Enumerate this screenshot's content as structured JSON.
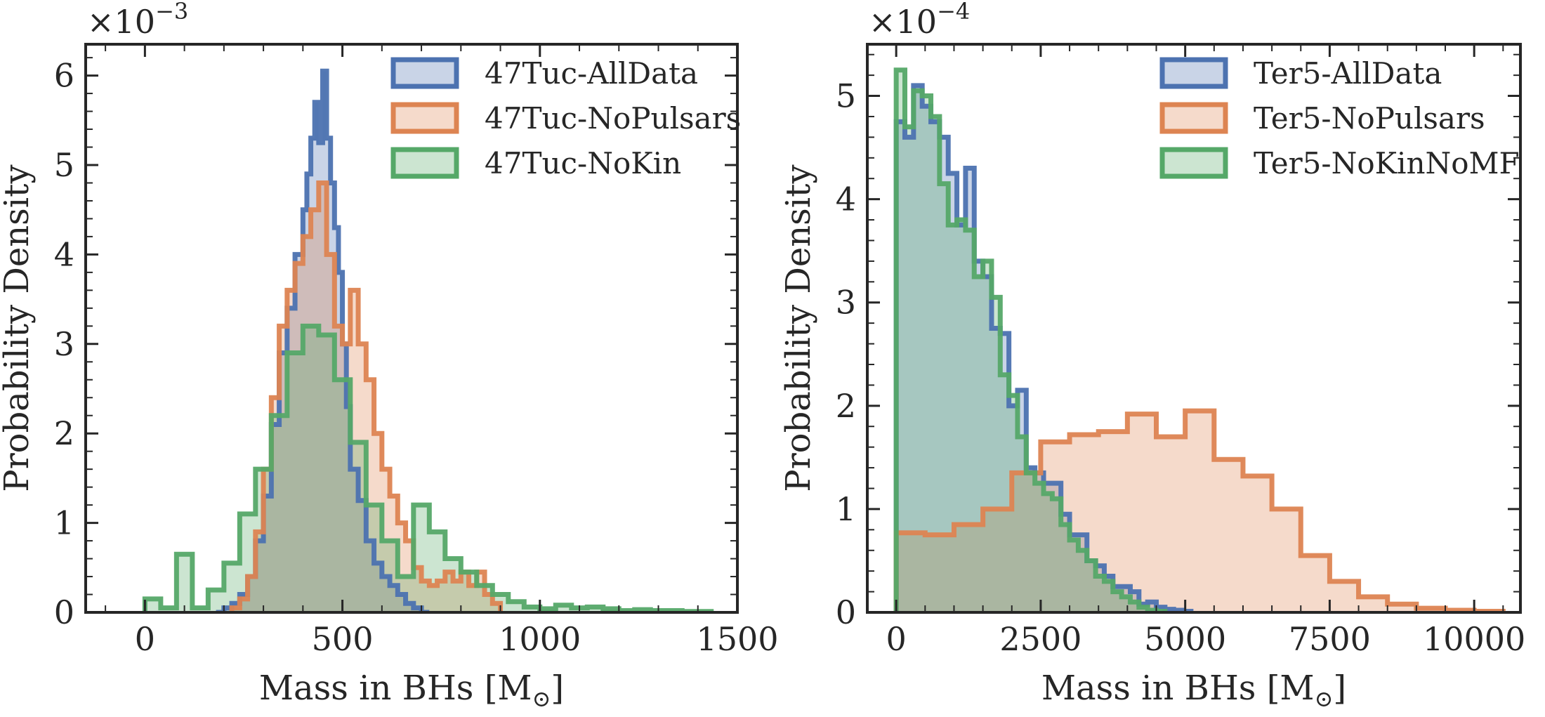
{
  "colors": {
    "blue": "#4C72B0",
    "orange": "#DD8452",
    "green": "#55A868",
    "axis": "#262626"
  },
  "chart_data": [
    {
      "type": "histogram",
      "scale_prefix": "×10",
      "scale_exponent": "−3",
      "xlabel": "Mass in BHs [M",
      "xlabel_sub": "⊙",
      "xlabel_end": "]",
      "ylabel": "Probability Density",
      "xlim": [
        -150,
        1500
      ],
      "ylim": [
        0,
        6.35
      ],
      "xticks": [
        0,
        500,
        1000,
        1500
      ],
      "xtick_labels": [
        "0",
        "500",
        "1000",
        "1500"
      ],
      "xminor_step": 100,
      "yticks": [
        0,
        1,
        2,
        3,
        4,
        5,
        6
      ],
      "ytick_labels": [
        "0",
        "1",
        "2",
        "3",
        "4",
        "5",
        "6"
      ],
      "yminor_step": 0.2,
      "legend_position": "top-right",
      "series": [
        {
          "name": "47Tuc-AllData",
          "color": "blue",
          "edges": [
            180,
            200,
            220,
            240,
            260,
            280,
            300,
            320,
            340,
            360,
            380,
            400,
            410,
            420,
            430,
            440,
            450,
            460,
            470,
            480,
            490,
            500,
            510,
            520,
            540,
            560,
            580,
            600,
            620,
            640,
            660,
            680,
            700,
            720
          ],
          "values": [
            0,
            0.05,
            0.1,
            0.2,
            0.4,
            0.8,
            1.3,
            2.1,
            2.9,
            3.4,
            4.0,
            4.5,
            4.9,
            5.3,
            5.7,
            5.25,
            6.05,
            5.3,
            4.8,
            4.3,
            3.8,
            3.0,
            2.3,
            1.6,
            1.25,
            0.8,
            0.55,
            0.4,
            0.3,
            0.2,
            0.1,
            0.05,
            0
          ]
        },
        {
          "name": "47Tuc-NoPulsars",
          "color": "orange",
          "edges": [
            220,
            240,
            260,
            280,
            300,
            320,
            340,
            360,
            380,
            400,
            420,
            440,
            460,
            480,
            500,
            520,
            540,
            560,
            580,
            600,
            620,
            640,
            660,
            680,
            700,
            720,
            740,
            760,
            780,
            800,
            820,
            840,
            860,
            880,
            900
          ],
          "values": [
            0.05,
            0.15,
            0.4,
            0.9,
            1.6,
            2.4,
            3.2,
            3.6,
            3.9,
            4.2,
            4.5,
            4.8,
            4.0,
            3.2,
            3.0,
            3.6,
            3.0,
            2.6,
            2.0,
            1.6,
            1.3,
            1.0,
            0.8,
            0.5,
            0.35,
            0.3,
            0.35,
            0.45,
            0.35,
            0.45,
            0.3,
            0.45,
            0.2,
            0.1
          ]
        },
        {
          "name": "47Tuc-NoKin",
          "color": "green",
          "edges": [
            0,
            40,
            80,
            120,
            160,
            200,
            240,
            280,
            320,
            360,
            400,
            440,
            480,
            520,
            560,
            600,
            640,
            680,
            720,
            760,
            800,
            840,
            880,
            920,
            960,
            1000,
            1040,
            1080,
            1120,
            1160,
            1200,
            1240,
            1280,
            1320,
            1360,
            1400,
            1440
          ],
          "values": [
            0.15,
            0.05,
            0.65,
            0.05,
            0.25,
            0.55,
            1.1,
            1.6,
            2.2,
            2.9,
            3.2,
            3.1,
            2.6,
            1.9,
            1.2,
            0.8,
            0.4,
            1.2,
            0.9,
            0.6,
            0.45,
            0.3,
            0.2,
            0.12,
            0.06,
            0.04,
            0.08,
            0.05,
            0.06,
            0.04,
            0.02,
            0.03,
            0.02,
            0.02,
            0.01,
            0.01,
            0.01
          ]
        }
      ]
    },
    {
      "type": "histogram",
      "scale_prefix": "×10",
      "scale_exponent": "−4",
      "xlabel": "Mass in BHs [M",
      "xlabel_sub": "⊙",
      "xlabel_end": "]",
      "ylabel": "Probability Density",
      "xlim": [
        -500,
        10800
      ],
      "ylim": [
        0,
        5.5
      ],
      "xticks": [
        0,
        2500,
        5000,
        7500,
        10000
      ],
      "xtick_labels": [
        "0",
        "2500",
        "5000",
        "7500",
        "10000"
      ],
      "xminor_step": 500,
      "yticks": [
        0,
        1,
        2,
        3,
        4,
        5
      ],
      "ytick_labels": [
        "0",
        "1",
        "2",
        "3",
        "4",
        "5"
      ],
      "yminor_step": 0.2,
      "legend_position": "top-right",
      "series": [
        {
          "name": "Ter5-AllData",
          "color": "blue",
          "edges": [
            0,
            150,
            300,
            450,
            600,
            750,
            900,
            1050,
            1200,
            1350,
            1500,
            1650,
            1800,
            1950,
            2100,
            2250,
            2400,
            2550,
            2700,
            2850,
            3000,
            3150,
            3300,
            3450,
            3600,
            3750,
            3900,
            4050,
            4200,
            4350,
            4500,
            4650,
            4800,
            4950,
            5100
          ],
          "values": [
            4.75,
            4.6,
            5.1,
            4.9,
            4.75,
            4.6,
            4.25,
            3.75,
            4.3,
            3.4,
            3.25,
            2.75,
            2.7,
            2.0,
            2.15,
            1.4,
            1.35,
            1.25,
            1.25,
            0.95,
            0.75,
            0.75,
            0.5,
            0.45,
            0.35,
            0.25,
            0.25,
            0.2,
            0.08,
            0.1,
            0.05,
            0.03,
            0.02,
            0.01
          ]
        },
        {
          "name": "Ter5-NoPulsars",
          "color": "orange",
          "edges": [
            0,
            500,
            1000,
            1500,
            2000,
            2500,
            3000,
            3500,
            4000,
            4500,
            5000,
            5500,
            6000,
            6500,
            7000,
            7500,
            8000,
            8500,
            9000,
            9500,
            10000,
            10500
          ],
          "values": [
            0.77,
            0.75,
            0.85,
            1.0,
            1.35,
            1.65,
            1.72,
            1.75,
            1.92,
            1.7,
            1.95,
            1.48,
            1.32,
            1.0,
            0.55,
            0.3,
            0.15,
            0.08,
            0.04,
            0.02,
            0.01
          ]
        },
        {
          "name": "Ter5-NoKinNoMF",
          "color": "green",
          "edges": [
            0,
            150,
            300,
            450,
            600,
            750,
            900,
            1050,
            1200,
            1350,
            1500,
            1650,
            1800,
            1950,
            2100,
            2250,
            2400,
            2550,
            2700,
            2850,
            3000,
            3150,
            3300,
            3450,
            3600,
            3750,
            3900,
            4050,
            4200,
            4350,
            4500,
            4650
          ],
          "values": [
            5.25,
            4.7,
            5.05,
            5.0,
            4.8,
            4.15,
            3.75,
            3.8,
            3.7,
            3.25,
            3.4,
            3.05,
            2.3,
            2.1,
            1.7,
            1.35,
            1.25,
            1.15,
            1.1,
            0.85,
            0.7,
            0.6,
            0.5,
            0.35,
            0.3,
            0.2,
            0.15,
            0.1,
            0.05,
            0.02,
            0.01
          ]
        }
      ]
    }
  ]
}
